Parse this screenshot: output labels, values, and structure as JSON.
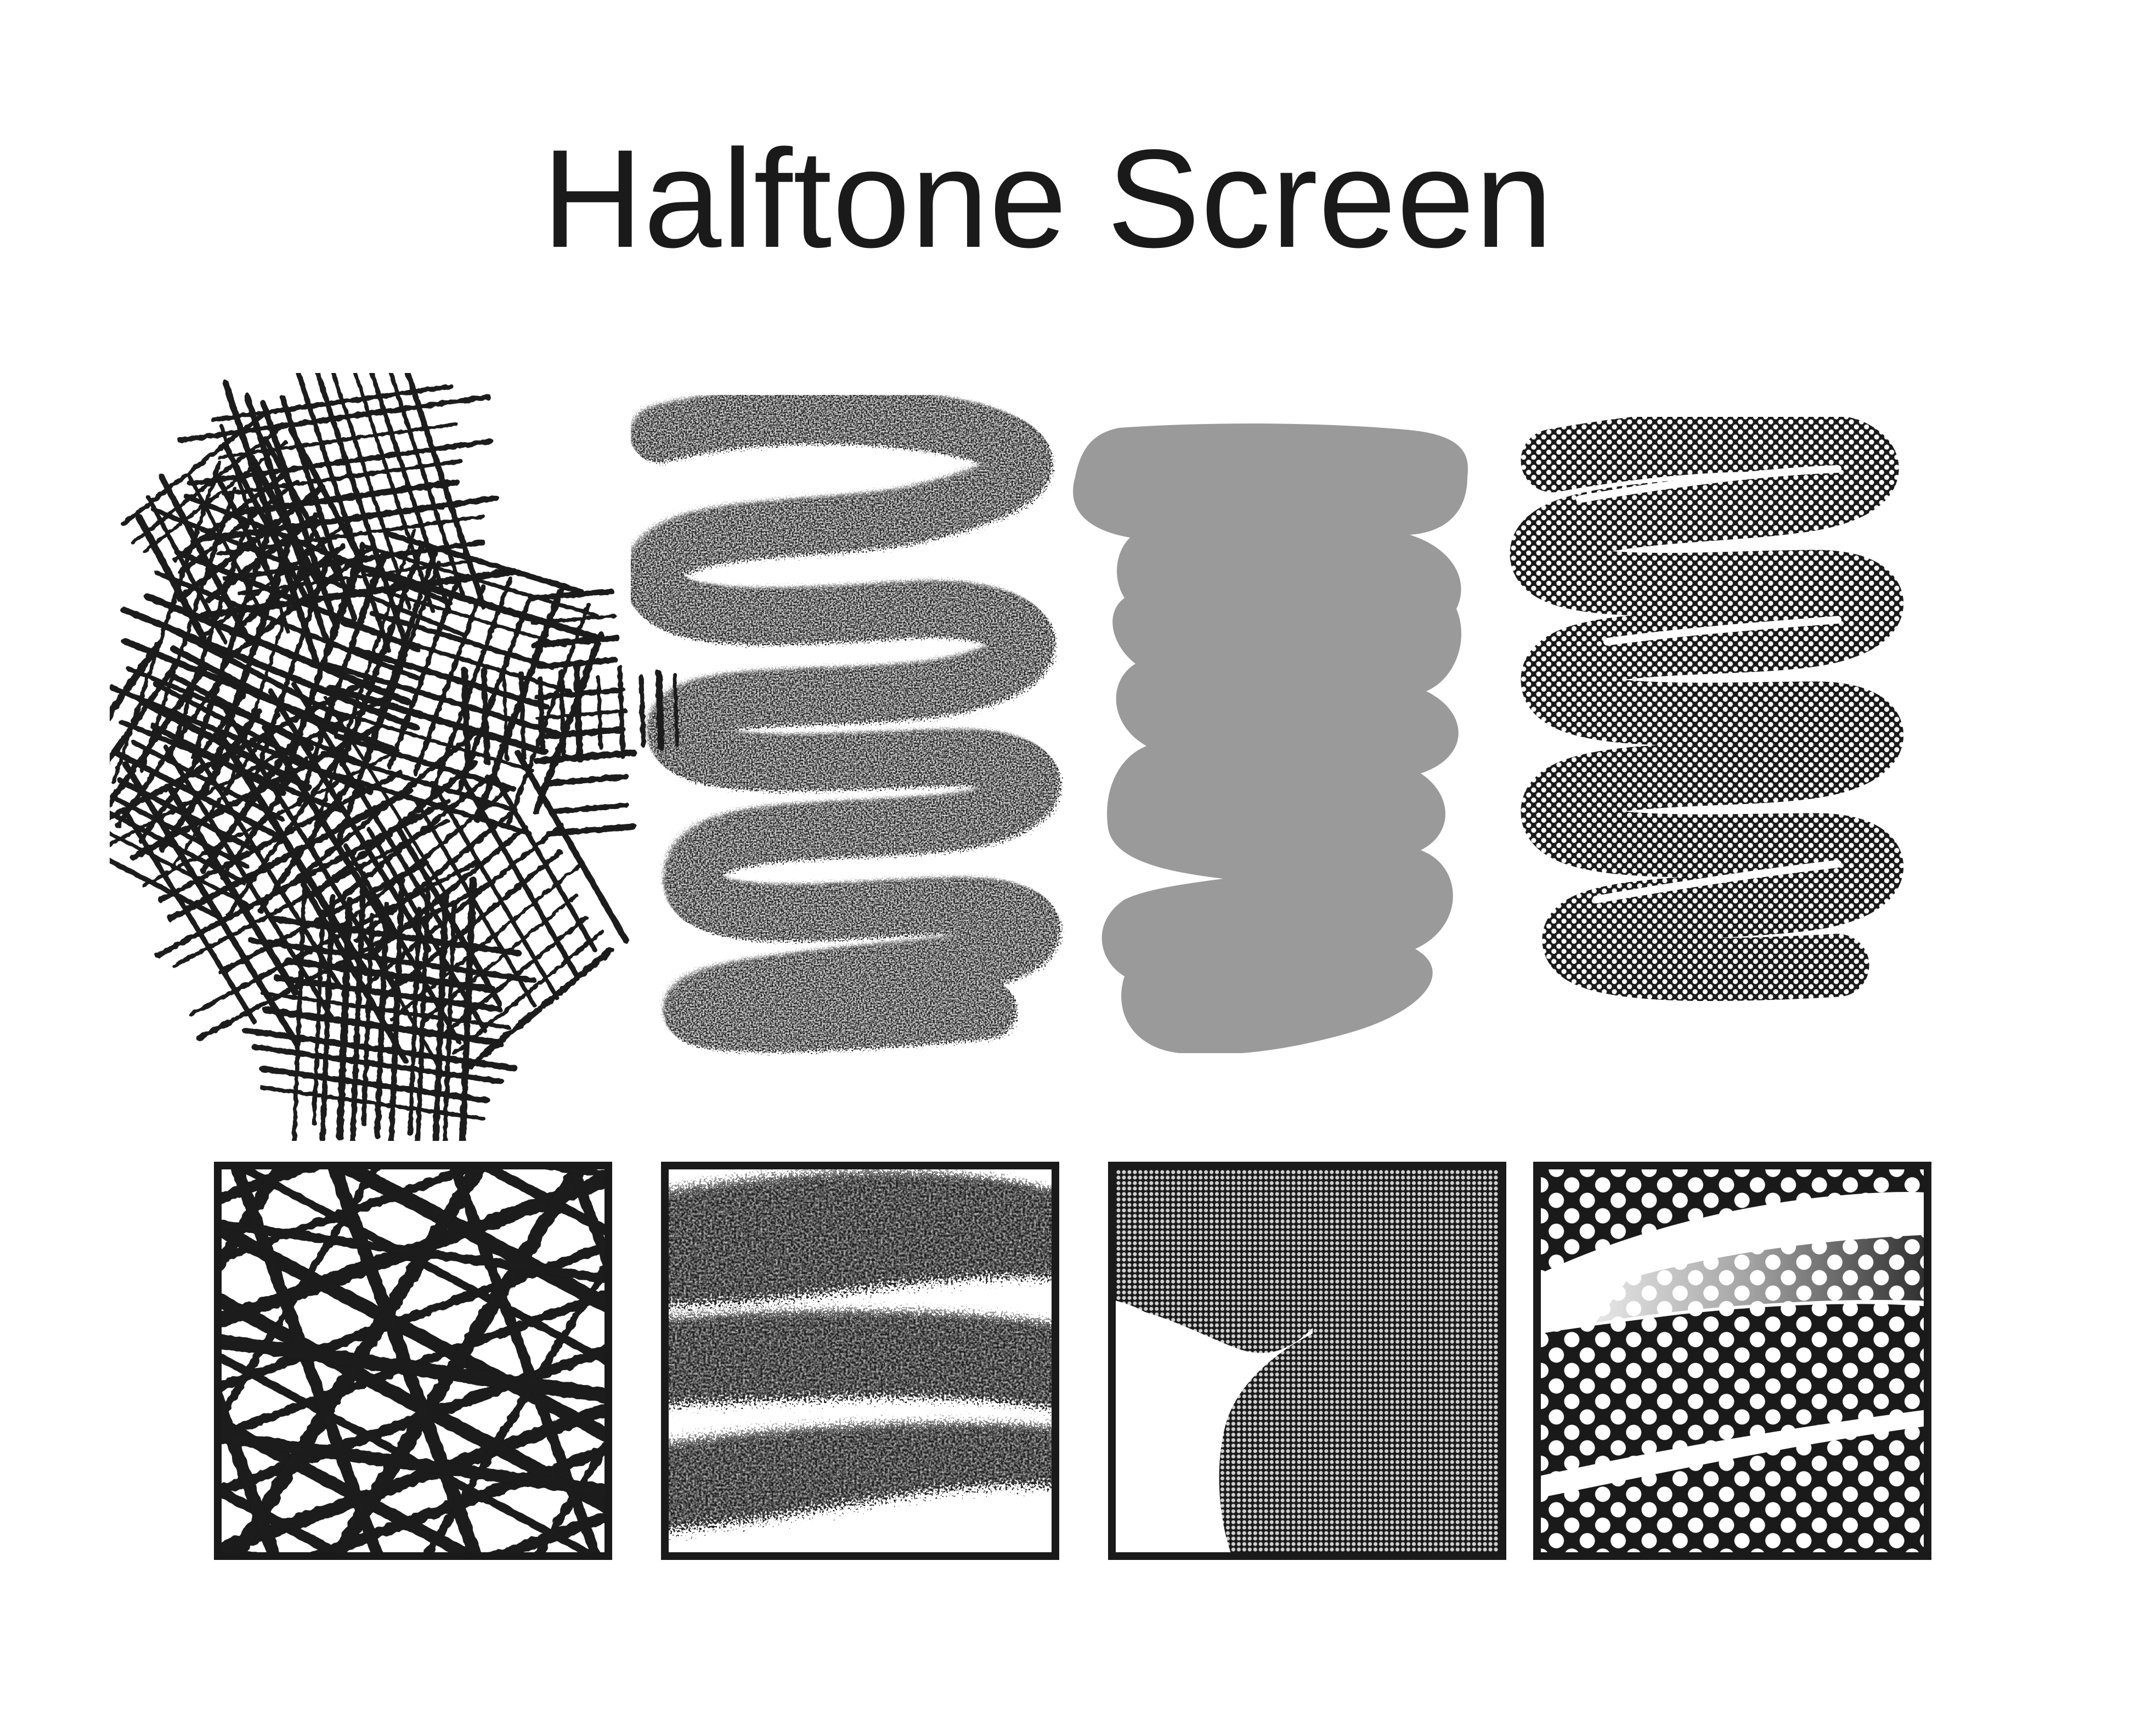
{
  "page": {
    "title": "Halftone Screen",
    "background": "#ffffff",
    "ink": "#1a1a1a",
    "fill_gray": "#9a9a9a"
  },
  "brush_strokes": [
    {
      "name": "crosshatch-stroke",
      "style": "crosshatch"
    },
    {
      "name": "charcoal-zigzag-stroke",
      "style": "rough charcoal"
    },
    {
      "name": "gray-fill-stroke",
      "style": "solid gray"
    },
    {
      "name": "halftone-zigzag-stroke",
      "style": "halftone dots"
    }
  ],
  "detail_tiles": [
    {
      "name": "crosshatch-detail",
      "style": "crosshatch close-up"
    },
    {
      "name": "charcoal-detail",
      "style": "charcoal close-up"
    },
    {
      "name": "fine-halftone-detail",
      "style": "fine halftone close-up"
    },
    {
      "name": "coarse-halftone-detail",
      "style": "coarse halftone close-up"
    }
  ]
}
